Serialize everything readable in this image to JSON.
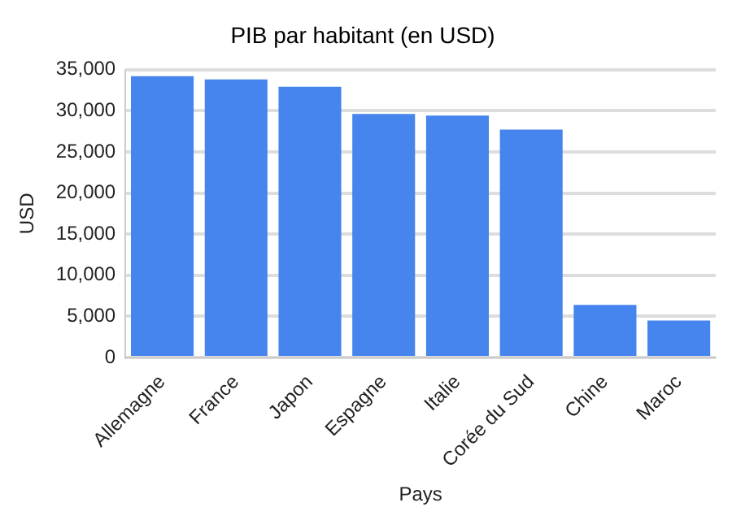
{
  "chart_data": {
    "type": "bar",
    "title": "PIB par habitant (en USD)",
    "xlabel": "Pays",
    "ylabel": "USD",
    "categories": [
      "Allemagne",
      "France",
      "Japon",
      "Espagne",
      "Italie",
      "Corée du Sud",
      "Chine",
      "Maroc"
    ],
    "values": [
      34200,
      33800,
      32900,
      29600,
      29400,
      27700,
      6400,
      4500
    ],
    "color": "#4684ee",
    "ylim": [
      0,
      35000
    ],
    "yticks": [
      0,
      {
        "value": 5000,
        "label": "5,000"
      },
      {
        "value": 10000,
        "label": "10,000"
      },
      {
        "value": 15000,
        "label": "15,000"
      },
      {
        "value": 20000,
        "label": "20,000"
      },
      {
        "value": 25000,
        "label": "25,000"
      },
      {
        "value": 30000,
        "label": "30,000"
      },
      {
        "value": 35000,
        "label": "35,000"
      }
    ],
    "grid": "y",
    "legend": false
  }
}
